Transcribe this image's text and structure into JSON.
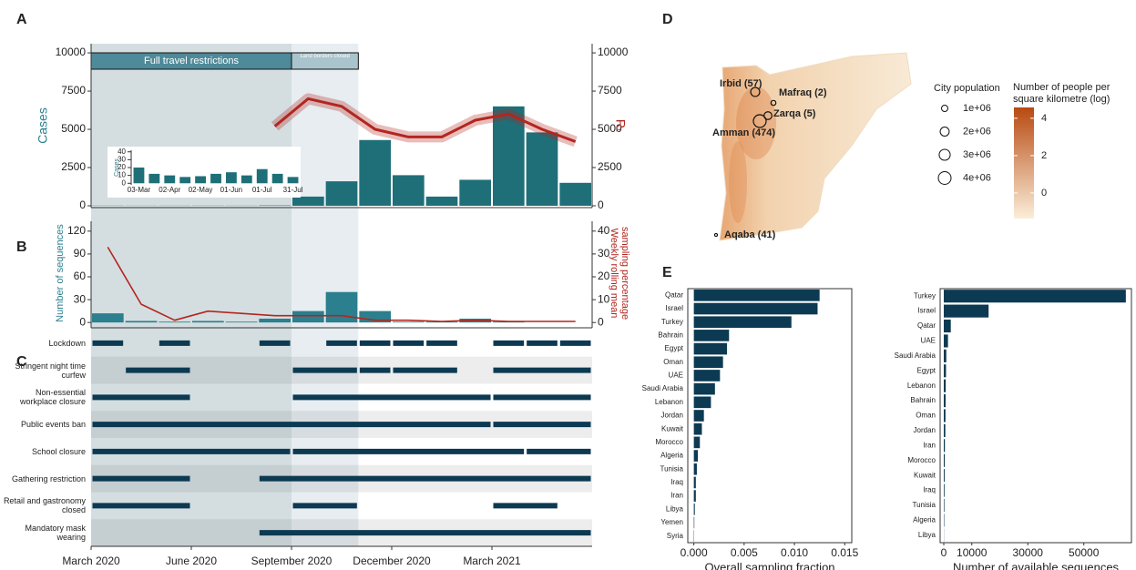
{
  "chart_data": [
    {
      "type": "bar",
      "panel": "A",
      "ylabel": "Cases",
      "y2label": "Rₜ",
      "x": [
        "2020-03",
        "2020-04",
        "2020-05",
        "2020-06",
        "2020-07",
        "2020-08",
        "2020-09",
        "2020-10",
        "2020-11",
        "2020-12",
        "2021-01",
        "2021-02",
        "2021-03",
        "2021-04",
        "2021-05"
      ],
      "series": [
        {
          "color": "#1f6f78",
          "values": [
            12,
            8,
            10,
            12,
            10,
            25,
            600,
            1600,
            4300,
            2000,
            600,
            1700,
            6500,
            4800,
            1500
          ]
        },
        {
          "color": "#b2261f",
          "type": "line",
          "axis": "y2",
          "values": [
            null,
            null,
            null,
            null,
            null,
            5200,
            7000,
            6500,
            5000,
            4500,
            4500,
            5600,
            6000,
            5000,
            4200
          ]
        }
      ],
      "xlim": [
        "2020-03",
        "2021-05"
      ],
      "ylim": [
        -120,
        10600
      ],
      "yticks": [
        0,
        2500,
        5000,
        7500,
        10000
      ],
      "y2lim": [
        -120,
        10600
      ],
      "y2ticks": [
        0,
        2500,
        5000,
        7500,
        10000
      ],
      "shading": [
        {
          "label": "Full travel restrictions",
          "start": "2020-03",
          "end": "2020-08"
        },
        {
          "label": "Land borders closed",
          "start": "2020-09",
          "end": "2020-10"
        }
      ]
    },
    {
      "type": "bar",
      "ylabel": "Cases",
      "categories": [
        "03-Mar",
        null,
        "02-Apr",
        null,
        "02-May",
        null,
        "01-Jun",
        null,
        "01-Jul",
        null,
        "31-Jul"
      ],
      "values": [
        20,
        12,
        10,
        8,
        9,
        12,
        14,
        10,
        18,
        12,
        8
      ],
      "color": "#1f6f78",
      "ylim": [
        -2,
        42
      ],
      "yticks": [
        0,
        10,
        20,
        30,
        40
      ]
    },
    {
      "type": "bar",
      "panel": "B",
      "ylabel": "Number of sequences",
      "y2label": [
        "Weekly rolling mean",
        "sampling percentage"
      ],
      "x": [
        "2020-03",
        "2020-04",
        "2020-05",
        "2020-06",
        "2020-07",
        "2020-08",
        "2020-09",
        "2020-10",
        "2020-11",
        "2020-12",
        "2021-01",
        "2021-02",
        "2021-03",
        "2021-04",
        "2021-05"
      ],
      "series": [
        {
          "color": "#2b7f8e",
          "values": [
            12,
            2,
            1,
            2,
            1,
            5,
            15,
            40,
            15,
            1,
            1,
            5,
            1,
            0,
            0
          ]
        },
        {
          "color": "#b2261f",
          "type": "line",
          "axis": "y2",
          "values": [
            33,
            8,
            1,
            5,
            4,
            3,
            3,
            3,
            1,
            1,
            0.5,
            1,
            0.5,
            0.5,
            0.5
          ]
        }
      ],
      "xlim": [
        "2020-03",
        "2021-05"
      ],
      "ylim": [
        -7,
        133
      ],
      "yticks": [
        0,
        30,
        60,
        90,
        120
      ],
      "y2lim": [
        -2.3,
        44.3
      ],
      "y2ticks": [
        0,
        10,
        20,
        30,
        40
      ]
    },
    {
      "type": "gantt",
      "panel": "C",
      "color": "#0c3a52",
      "xlim": [
        "2020-03",
        "2021-05"
      ],
      "xticks": [
        {
          "value": "2020-03",
          "label": "March 2020"
        },
        {
          "value": "2020-06",
          "label": "June 2020"
        },
        {
          "value": "2020-09",
          "label": "September 2020"
        },
        {
          "value": "2020-12",
          "label": "December 2020"
        },
        {
          "value": "2021-03",
          "label": "March 2021"
        }
      ],
      "rows": [
        {
          "label": "Lockdown",
          "periods": [
            [
              "2020-03",
              "2020-03"
            ],
            [
              "2020-05",
              "2020-05"
            ],
            [
              "2020-08",
              "2020-08"
            ],
            [
              "2020-10",
              "2020-10"
            ],
            [
              "2020-11",
              "2020-11"
            ],
            [
              "2020-12",
              "2020-12"
            ],
            [
              "2021-01",
              "2021-01"
            ],
            [
              "2021-03",
              "2021-03"
            ],
            [
              "2021-04",
              "2021-04"
            ],
            [
              "2021-05",
              "2021-05"
            ]
          ]
        },
        {
          "label": "Stringent night time curfew",
          "periods": [
            [
              "2020-04",
              "2020-05"
            ],
            [
              "2020-09",
              "2020-10"
            ],
            [
              "2020-11",
              "2020-11"
            ],
            [
              "2020-12",
              "2021-01"
            ],
            [
              "2021-03",
              "2021-05"
            ]
          ]
        },
        {
          "label": "Non-essential workplace closure",
          "periods": [
            [
              "2020-03",
              "2020-05"
            ],
            [
              "2020-09",
              "2021-02"
            ],
            [
              "2021-03",
              "2021-05"
            ]
          ]
        },
        {
          "label": "Public events ban",
          "periods": [
            [
              "2020-03",
              "2021-02"
            ],
            [
              "2021-03",
              "2021-05"
            ]
          ]
        },
        {
          "label": "School closure",
          "periods": [
            [
              "2020-03",
              "2020-08"
            ],
            [
              "2020-09",
              "2021-03"
            ],
            [
              "2021-04",
              "2021-05"
            ]
          ]
        },
        {
          "label": "Gathering restriction",
          "periods": [
            [
              "2020-03",
              "2020-05"
            ],
            [
              "2020-08",
              "2021-05"
            ]
          ]
        },
        {
          "label": "Retail and gastronomy closed",
          "periods": [
            [
              "2020-03",
              "2020-05"
            ],
            [
              "2020-09",
              "2020-10"
            ],
            [
              "2021-03",
              "2021-04"
            ]
          ]
        },
        {
          "label": "Mandatory mask wearing",
          "periods": [
            [
              "2020-08",
              "2021-05"
            ]
          ]
        }
      ]
    },
    {
      "type": "map",
      "panel": "D",
      "cities": [
        {
          "label": "Irbid (57)",
          "population": 2000000
        },
        {
          "label": "Mafraq (2)",
          "population": 600000
        },
        {
          "label": "Zarqa (5)",
          "population": 1500000
        },
        {
          "label": "Amman (474)",
          "population": 4000000
        },
        {
          "label": "Aqaba (41)",
          "population": 200000
        }
      ],
      "size_legend": {
        "title": "City population",
        "values": [
          {
            "value": 1000000,
            "label": "1e+06"
          },
          {
            "value": 2000000,
            "label": "2e+06"
          },
          {
            "value": 3000000,
            "label": "3e+06"
          },
          {
            "value": 4000000,
            "label": "4e+06"
          }
        ]
      },
      "color_legend": {
        "title": "Number of people per square kilometre (log)",
        "clim": [
          -1.37,
          4.58
        ],
        "ticks": [
          0,
          2,
          4
        ],
        "colors": [
          "#fbeed9",
          "#b84a12"
        ]
      }
    },
    {
      "type": "barh",
      "panel": "E",
      "xlabel": "Overall sampling fraction",
      "color": "#0c3a52",
      "categories": [
        "Qatar",
        "Israel",
        "Turkey",
        "Bahrain",
        "Egypt",
        "Oman",
        "UAE",
        "Saudi Arabia",
        "Lebanon",
        "Jordan",
        "Kuwait",
        "Morocco",
        "Algeria",
        "Tunisia",
        "Iraq",
        "Iran",
        "Libya",
        "Yemen",
        "Syria"
      ],
      "values": [
        0.0125,
        0.0123,
        0.0097,
        0.0035,
        0.0033,
        0.0029,
        0.0026,
        0.0021,
        0.0017,
        0.001,
        0.0008,
        0.0006,
        0.0004,
        0.0003,
        0.0002,
        0.0002,
        0.0001,
        5e-05,
        3e-05
      ],
      "xlim": [
        -0.0006,
        0.0157
      ],
      "xticks": [
        {
          "value": 0,
          "label": "0.000"
        },
        0.005,
        {
          "value": 0.01,
          "label": "0.010"
        },
        0.015
      ]
    },
    {
      "type": "barh",
      "xlabel": "Number of available sequences",
      "color": "#0c3a52",
      "categories": [
        "Turkey",
        "Israel",
        "Qatar",
        "UAE",
        "Saudi Arabia",
        "Egypt",
        "Lebanon",
        "Bahrain",
        "Oman",
        "Jordan",
        "Iran",
        "Morocco",
        "Kuwait",
        "Iraq",
        "Tunisia",
        "Algeria",
        "Libya"
      ],
      "values": [
        65000,
        16000,
        2500,
        1500,
        900,
        800,
        700,
        650,
        600,
        550,
        400,
        350,
        300,
        250,
        200,
        150,
        50
      ],
      "xlim": [
        -1300,
        67000
      ],
      "xticks": [
        0,
        10000,
        30000,
        50000
      ]
    }
  ]
}
